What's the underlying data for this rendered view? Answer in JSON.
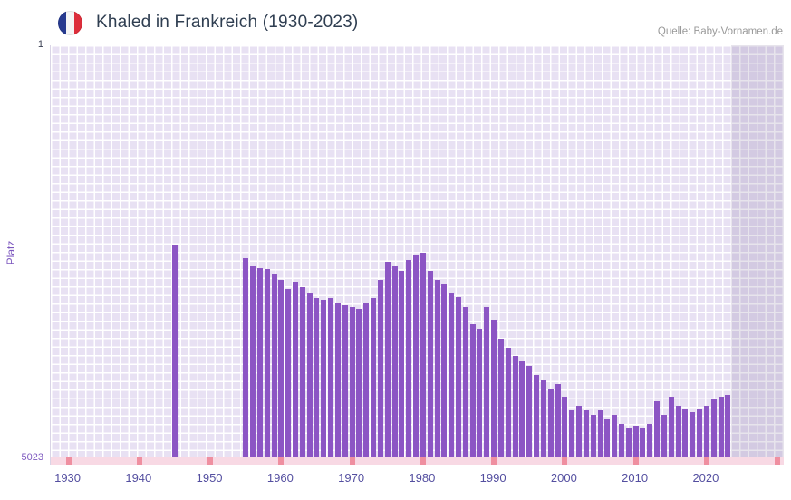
{
  "header": {
    "title": "Khaled in Frankreich (1930-2023)",
    "source": "Quelle: Baby-Vornamen.de",
    "flag_icon": "france-flag"
  },
  "y_axis_labels": {
    "title": "Platz",
    "top": "1",
    "bottom": "5023"
  },
  "chart_data": {
    "type": "bar",
    "title": "Khaled in Frankreich (1930-2023)",
    "xlabel": "",
    "ylabel": "Platz",
    "y_axis": {
      "min": 1,
      "max": 5023,
      "inverted": true,
      "top_label": "1",
      "bottom_label": "5023"
    },
    "x_range": [
      1930,
      2023
    ],
    "x_ticks": [
      "1930",
      "1940",
      "1950",
      "1960",
      "1970",
      "1980",
      "1990",
      "2000",
      "2010",
      "2020"
    ],
    "band_tick_years": [
      1930,
      1940,
      1950,
      1960,
      1970,
      1980,
      1990,
      2000,
      2010,
      2020,
      2030
    ],
    "shade_from_year": 2024,
    "colors": {
      "bar": "#8c55c4",
      "plot_background": "#e8e1f3",
      "grid_line": "#ffffff",
      "no_data_band": "#f8d9e4",
      "band_tick": "#ef8fa0",
      "future_shade": "rgba(106,86,137,0.16)",
      "x_label": "#544fa0",
      "y_label": "#7d58bf",
      "title": "#2f3e51",
      "source": "#999999"
    },
    "bars": [
      {
        "year": 1945,
        "rank": 2430
      },
      {
        "year": 1955,
        "rank": 2600
      },
      {
        "year": 1956,
        "rank": 2690
      },
      {
        "year": 1957,
        "rank": 2715
      },
      {
        "year": 1958,
        "rank": 2725
      },
      {
        "year": 1959,
        "rank": 2790
      },
      {
        "year": 1960,
        "rank": 2860
      },
      {
        "year": 1961,
        "rank": 2970
      },
      {
        "year": 1962,
        "rank": 2880
      },
      {
        "year": 1963,
        "rank": 2950
      },
      {
        "year": 1964,
        "rank": 3010
      },
      {
        "year": 1965,
        "rank": 3080
      },
      {
        "year": 1966,
        "rank": 3100
      },
      {
        "year": 1967,
        "rank": 3080
      },
      {
        "year": 1968,
        "rank": 3135
      },
      {
        "year": 1969,
        "rank": 3165
      },
      {
        "year": 1970,
        "rank": 3190
      },
      {
        "year": 1971,
        "rank": 3210
      },
      {
        "year": 1972,
        "rank": 3135
      },
      {
        "year": 1973,
        "rank": 3080
      },
      {
        "year": 1974,
        "rank": 2860
      },
      {
        "year": 1975,
        "rank": 2640
      },
      {
        "year": 1976,
        "rank": 2690
      },
      {
        "year": 1977,
        "rank": 2750
      },
      {
        "year": 1978,
        "rank": 2615
      },
      {
        "year": 1979,
        "rank": 2560
      },
      {
        "year": 1980,
        "rank": 2525
      },
      {
        "year": 1981,
        "rank": 2750
      },
      {
        "year": 1982,
        "rank": 2860
      },
      {
        "year": 1983,
        "rank": 2915
      },
      {
        "year": 1984,
        "rank": 3010
      },
      {
        "year": 1985,
        "rank": 3070
      },
      {
        "year": 1986,
        "rank": 3190
      },
      {
        "year": 1987,
        "rank": 3400
      },
      {
        "year": 1988,
        "rank": 3455
      },
      {
        "year": 1989,
        "rank": 3190
      },
      {
        "year": 1990,
        "rank": 3345
      },
      {
        "year": 1991,
        "rank": 3575
      },
      {
        "year": 1992,
        "rank": 3685
      },
      {
        "year": 1993,
        "rank": 3785
      },
      {
        "year": 1994,
        "rank": 3850
      },
      {
        "year": 1995,
        "rank": 3905
      },
      {
        "year": 1996,
        "rank": 4015
      },
      {
        "year": 1997,
        "rank": 4075
      },
      {
        "year": 1998,
        "rank": 4185
      },
      {
        "year": 1999,
        "rank": 4130
      },
      {
        "year": 2000,
        "rank": 4280
      },
      {
        "year": 2001,
        "rank": 4450
      },
      {
        "year": 2002,
        "rank": 4395
      },
      {
        "year": 2003,
        "rank": 4450
      },
      {
        "year": 2004,
        "rank": 4505
      },
      {
        "year": 2005,
        "rank": 4450
      },
      {
        "year": 2006,
        "rank": 4560
      },
      {
        "year": 2007,
        "rank": 4505
      },
      {
        "year": 2008,
        "rank": 4615
      },
      {
        "year": 2009,
        "rank": 4670
      },
      {
        "year": 2010,
        "rank": 4635
      },
      {
        "year": 2011,
        "rank": 4670
      },
      {
        "year": 2012,
        "rank": 4615
      },
      {
        "year": 2013,
        "rank": 4335
      },
      {
        "year": 2014,
        "rank": 4505
      },
      {
        "year": 2015,
        "rank": 4280
      },
      {
        "year": 2016,
        "rank": 4395
      },
      {
        "year": 2017,
        "rank": 4435
      },
      {
        "year": 2018,
        "rank": 4470
      },
      {
        "year": 2019,
        "rank": 4435
      },
      {
        "year": 2020,
        "rank": 4395
      },
      {
        "year": 2021,
        "rank": 4315
      },
      {
        "year": 2022,
        "rank": 4280
      },
      {
        "year": 2023,
        "rank": 4260
      }
    ]
  }
}
